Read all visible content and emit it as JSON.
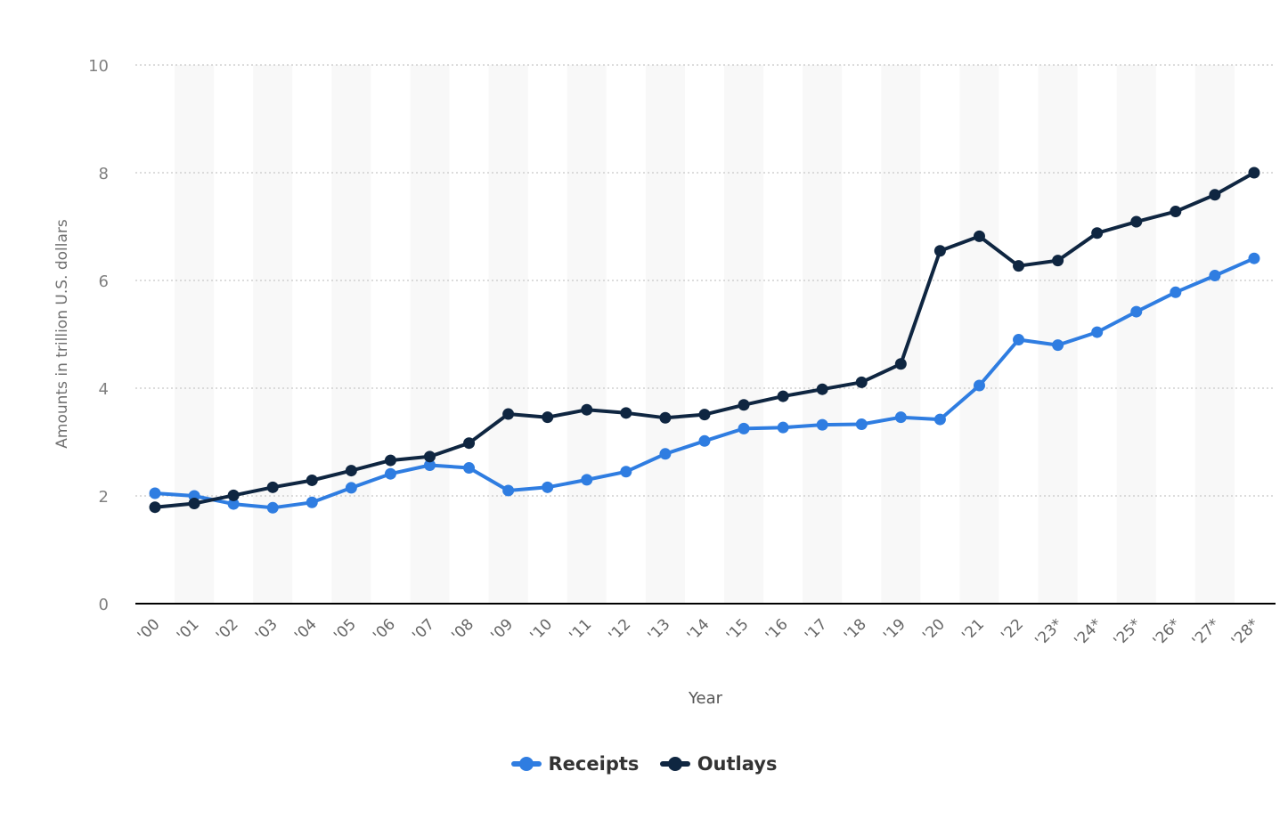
{
  "chart_data": {
    "type": "line",
    "title": "",
    "xlabel": "Year",
    "ylabel": "Amounts in trillion U.S. dollars",
    "ylim": [
      0,
      10
    ],
    "yticks": [
      "0",
      "2",
      "4",
      "6",
      "8",
      "10"
    ],
    "grid": "horizontal dotted",
    "legend": "bottom-center",
    "categories": [
      "'00",
      "'01",
      "'02",
      "'03",
      "'04",
      "'05",
      "'06",
      "'07",
      "'08",
      "'09",
      "'10",
      "'11",
      "'12",
      "'13",
      "'14",
      "'15",
      "'16",
      "'17",
      "'18",
      "'19",
      "'20",
      "'21",
      "'22",
      "'23*",
      "'24*",
      "'25*",
      "'26*",
      "'27*",
      "'28*"
    ],
    "series": [
      {
        "name": "Receipts",
        "color": "#2f7de1",
        "values": [
          2.05,
          2.0,
          1.85,
          1.78,
          1.88,
          2.15,
          2.41,
          2.57,
          2.52,
          2.1,
          2.16,
          2.3,
          2.45,
          2.78,
          3.02,
          3.25,
          3.27,
          3.32,
          3.33,
          3.46,
          3.42,
          4.05,
          4.9,
          4.8,
          5.04,
          5.42,
          5.78,
          6.09,
          6.41
        ]
      },
      {
        "name": "Outlays",
        "color": "#0f2641",
        "values": [
          1.79,
          1.86,
          2.01,
          2.16,
          2.29,
          2.47,
          2.66,
          2.73,
          2.98,
          3.52,
          3.46,
          3.6,
          3.54,
          3.45,
          3.51,
          3.69,
          3.85,
          3.98,
          4.11,
          4.45,
          6.55,
          6.82,
          6.27,
          6.37,
          6.88,
          7.09,
          7.28,
          7.59,
          8.0
        ]
      }
    ]
  }
}
